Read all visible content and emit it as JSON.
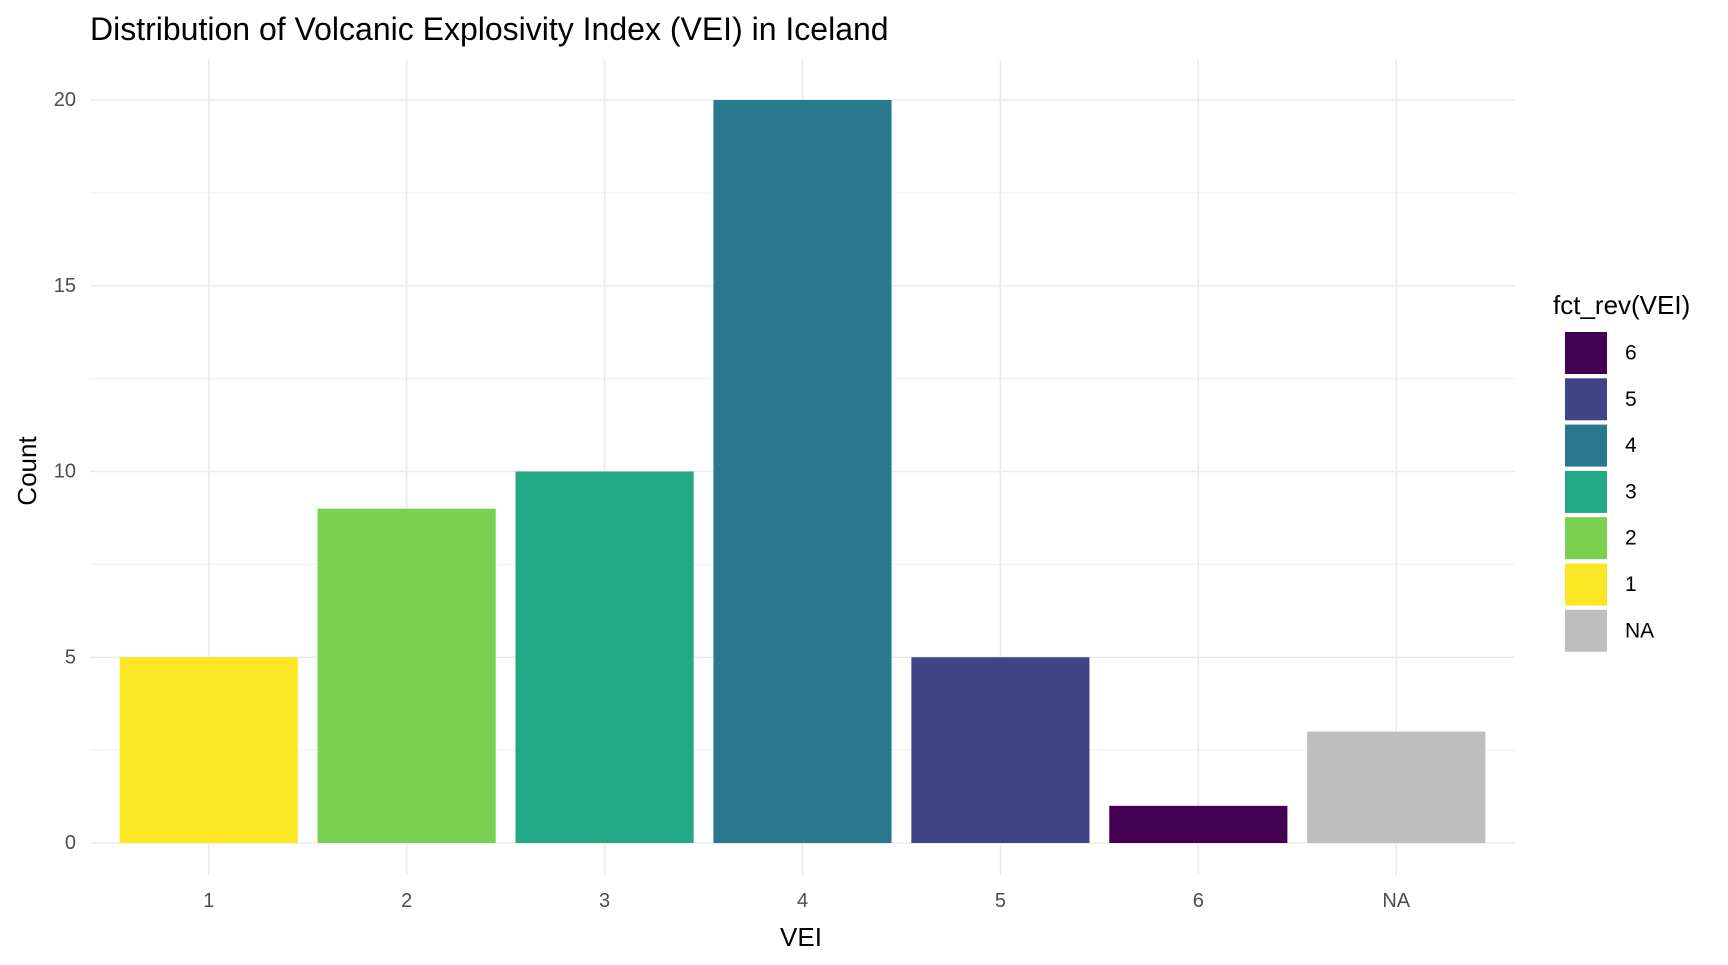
{
  "chart_data": {
    "type": "bar",
    "title": "Distribution of Volcanic Explosivity Index (VEI) in Iceland",
    "xlabel": "VEI",
    "ylabel": "Count",
    "categories": [
      "1",
      "2",
      "3",
      "4",
      "5",
      "6",
      "NA"
    ],
    "values": [
      5,
      9,
      10,
      20,
      5,
      1,
      3
    ],
    "bar_colors": [
      "#FDE725",
      "#7AD151",
      "#22A884",
      "#2A788E",
      "#414487",
      "#440154",
      "#BEBEBE"
    ],
    "ylim": [
      0,
      21.1
    ],
    "yticks": [
      0,
      5,
      10,
      15,
      20
    ],
    "grid": true,
    "legend": {
      "title": "fct_rev(VEI)",
      "position": "right",
      "entries": [
        {
          "label": "6",
          "color": "#440154"
        },
        {
          "label": "5",
          "color": "#414487"
        },
        {
          "label": "4",
          "color": "#2A788E"
        },
        {
          "label": "3",
          "color": "#22A884"
        },
        {
          "label": "2",
          "color": "#7AD151"
        },
        {
          "label": "1",
          "color": "#FDE725"
        },
        {
          "label": "NA",
          "color": "#BEBEBE"
        }
      ]
    }
  }
}
